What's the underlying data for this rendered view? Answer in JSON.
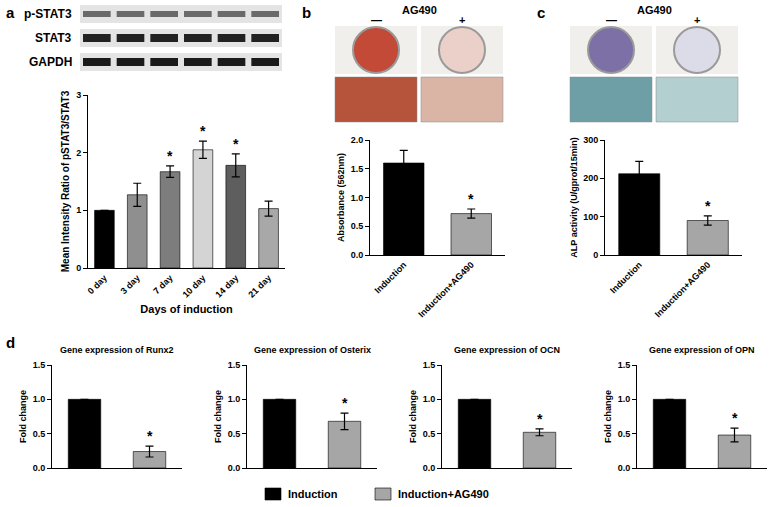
{
  "panel_labels": [
    "a",
    "b",
    "c",
    "d"
  ],
  "blot": {
    "rows": [
      "p-STAT3",
      "STAT3",
      "GAPDH"
    ]
  },
  "treatment": {
    "label": "AG490",
    "conditions": [
      "—",
      "+"
    ]
  },
  "legend": [
    {
      "name": "Induction",
      "color": "#000000"
    },
    {
      "name": "Induction+AG490",
      "color": "#a6a6a6"
    }
  ],
  "chart_data": [
    {
      "panel": "a",
      "type": "bar",
      "categories": [
        "0 day",
        "3 day",
        "7 day",
        "10 day",
        "14 day",
        "21 day"
      ],
      "values": [
        1,
        1.27,
        1.67,
        2.05,
        1.78,
        1.03
      ],
      "errors": [
        0,
        0.2,
        0.1,
        0.15,
        0.2,
        0.13
      ],
      "colors": [
        "#000000",
        "#8f8f8f",
        "#7d7d7d",
        "#d4d4d4",
        "#5e5e5e",
        "#a8a8a8"
      ],
      "x_label": "Days of induction",
      "y_label": "Mean Intensity Ratio of pSTAT3/STAT3",
      "ylim": [
        0,
        3
      ],
      "yticks": [
        0,
        1,
        2,
        3
      ],
      "grid": false,
      "annotations": [
        {
          "category": "7 day",
          "text": "*"
        },
        {
          "category": "10 day",
          "text": "*"
        },
        {
          "category": "14 day",
          "text": "*"
        }
      ]
    },
    {
      "panel": "b",
      "type": "bar",
      "categories": [
        "Induction",
        "Induction+AG490"
      ],
      "values": [
        1.6,
        0.72
      ],
      "errors": [
        0.22,
        0.08
      ],
      "colors": [
        "#000000",
        "#a6a6a6"
      ],
      "y_label": "Absorbance (562nm)",
      "ylim": [
        0,
        2
      ],
      "yticks": [
        {
          "value": 0,
          "label": "0.0"
        },
        0.5,
        {
          "value": 1,
          "label": "1.0"
        },
        1.5,
        {
          "value": 2,
          "label": "2.0"
        }
      ],
      "grid": false,
      "annotations": [
        {
          "category": "Induction+AG490",
          "text": "*"
        }
      ]
    },
    {
      "panel": "c",
      "type": "bar",
      "categories": [
        "Induction",
        "Induction+AG490"
      ],
      "values": [
        212,
        90
      ],
      "errors": [
        32,
        12
      ],
      "colors": [
        "#000000",
        "#a6a6a6"
      ],
      "y_label": "ALP activity (U/gprot/15min)",
      "ylim": [
        0,
        300
      ],
      "yticks": [
        0,
        100,
        200,
        300
      ],
      "grid": false,
      "annotations": [
        {
          "category": "Induction+AG490",
          "text": "*"
        }
      ]
    },
    {
      "panel": "d",
      "type": "bar",
      "title": "Gene expression of Runx2",
      "categories": [
        "Induction",
        "Induction+AG490"
      ],
      "tick_labels": "y",
      "values": [
        1,
        0.24
      ],
      "errors": [
        0,
        0.08
      ],
      "colors": [
        "#000000",
        "#a6a6a6"
      ],
      "y_label": "Fold change",
      "ylim": [
        0,
        1.5
      ],
      "yticks": [
        {
          "value": 0,
          "label": "0.0"
        },
        0.5,
        {
          "value": 1,
          "label": "1.0"
        },
        1.5
      ],
      "grid": false,
      "annotations": [
        {
          "category": "Induction+AG490",
          "text": "*"
        }
      ]
    },
    {
      "panel": "d",
      "type": "bar",
      "title": "Gene expression of Osterix",
      "categories": [
        "Induction",
        "Induction+AG490"
      ],
      "tick_labels": "y",
      "values": [
        1,
        0.68
      ],
      "errors": [
        0,
        0.12
      ],
      "colors": [
        "#000000",
        "#a6a6a6"
      ],
      "y_label": "Fold change",
      "ylim": [
        0,
        1.5
      ],
      "yticks": [
        {
          "value": 0,
          "label": "0.0"
        },
        0.5,
        {
          "value": 1,
          "label": "1.0"
        },
        1.5
      ],
      "grid": false,
      "annotations": [
        {
          "category": "Induction+AG490",
          "text": "*"
        }
      ]
    },
    {
      "panel": "d",
      "type": "bar",
      "title": "Gene expression of OCN",
      "categories": [
        "Induction",
        "Induction+AG490"
      ],
      "tick_labels": "y",
      "values": [
        1,
        0.52
      ],
      "errors": [
        0,
        0.05
      ],
      "colors": [
        "#000000",
        "#a6a6a6"
      ],
      "y_label": "Fold change",
      "ylim": [
        0,
        1.5
      ],
      "yticks": [
        {
          "value": 0,
          "label": "0.0"
        },
        0.5,
        {
          "value": 1,
          "label": "1.0"
        },
        1.5
      ],
      "grid": false,
      "annotations": [
        {
          "category": "Induction+AG490",
          "text": "*"
        }
      ]
    },
    {
      "panel": "d",
      "type": "bar",
      "title": "Gene expression of OPN",
      "categories": [
        "Induction",
        "Induction+AG490"
      ],
      "tick_labels": "y",
      "values": [
        1,
        0.48
      ],
      "errors": [
        0,
        0.1
      ],
      "colors": [
        "#000000",
        "#a6a6a6"
      ],
      "y_label": "Fold change",
      "ylim": [
        0,
        1.5
      ],
      "yticks": [
        {
          "value": 0,
          "label": "0.0"
        },
        0.5,
        {
          "value": 1,
          "label": "1.0"
        },
        1.5
      ],
      "grid": false,
      "annotations": [
        {
          "category": "Induction+AG490",
          "text": "*"
        }
      ]
    }
  ]
}
